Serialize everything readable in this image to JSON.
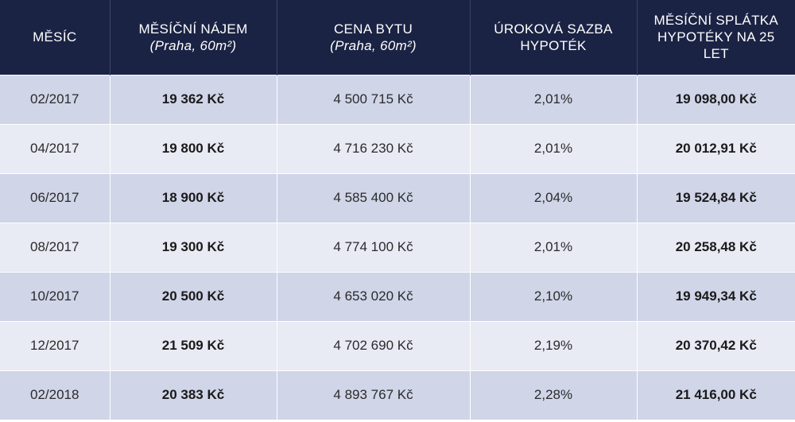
{
  "header": {
    "month": "MĚSÍC",
    "rent": "MĚSÍČNÍ NÁJEM",
    "rent_sub": "(Praha, 60m²)",
    "price": "CENA BYTU",
    "price_sub": "(Praha, 60m²)",
    "rate": "ÚROKOVÁ SAZBA HYPOTÉK",
    "payment": "MĚSÍČNÍ SPLÁTKA HYPOTÉKY NA 25 LET"
  },
  "rows": [
    {
      "month": "02/2017",
      "rent": "19 362 Kč",
      "price": "4 500 715 Kč",
      "rate": "2,01%",
      "payment": "19 098,00 Kč"
    },
    {
      "month": "04/2017",
      "rent": "19 800 Kč",
      "price": "4 716 230 Kč",
      "rate": "2,01%",
      "payment": "20 012,91 Kč"
    },
    {
      "month": "06/2017",
      "rent": "18 900 Kč",
      "price": "4 585 400 Kč",
      "rate": "2,04%",
      "payment": "19 524,84 Kč"
    },
    {
      "month": "08/2017",
      "rent": "19 300 Kč",
      "price": "4 774 100 Kč",
      "rate": "2,01%",
      "payment": "20 258,48 Kč"
    },
    {
      "month": "10/2017",
      "rent": "20 500 Kč",
      "price": "4 653 020 Kč",
      "rate": "2,10%",
      "payment": "19 949,34 Kč"
    },
    {
      "month": "12/2017",
      "rent": "21 509 Kč",
      "price": "4 702 690 Kč",
      "rate": "2,19%",
      "payment": "20 370,42 Kč"
    },
    {
      "month": "02/2018",
      "rent": "20 383 Kč",
      "price": "4 893 767 Kč",
      "rate": "2,28%",
      "payment": "21 416,00 Kč"
    }
  ]
}
